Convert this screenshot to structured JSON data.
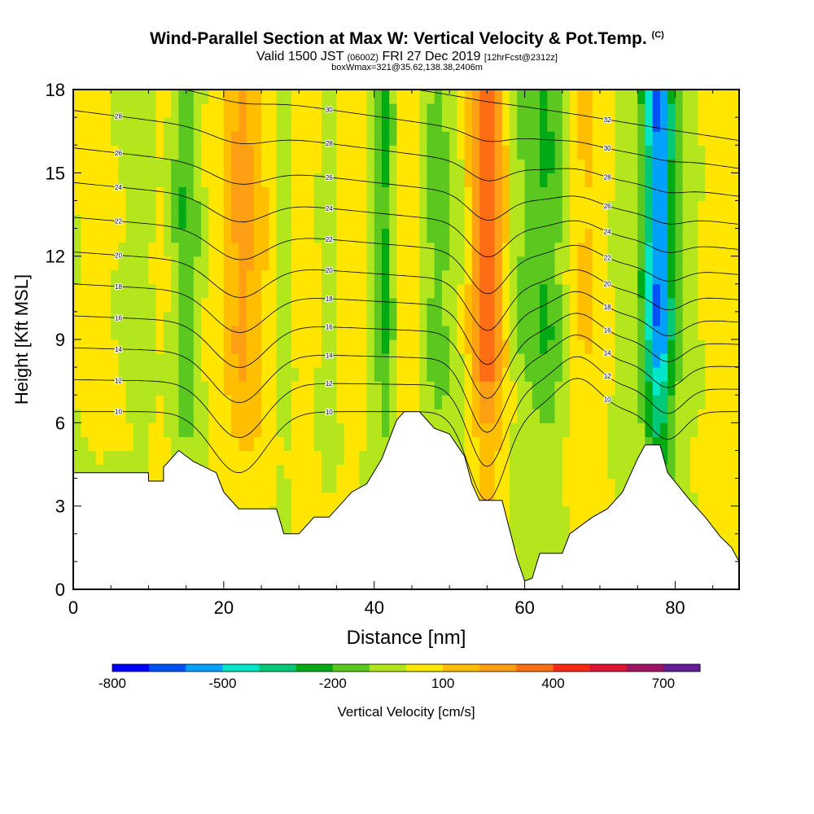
{
  "header": {
    "title": "Wind-Parallel Section at Max W: Vertical Velocity & Pot.Temp.",
    "copyright": "(C)",
    "valid_prefix": "Valid 1500 JST",
    "valid_utc": "(0600Z)",
    "valid_date": "FRI 27 Dec 2019",
    "forecast": "[12hrFcst@2312z]",
    "box_info": "boxWmax=321@35.62,138.38,2406m"
  },
  "chart_data": {
    "type": "heatmap",
    "title": "Wind-Parallel Section at Max W: Vertical Velocity & Pot.Temp.",
    "xlabel": "Distance [nm]",
    "ylabel": "Height [Kft MSL]",
    "xlim": [
      0,
      88.5
    ],
    "ylim": [
      0,
      18
    ],
    "xticks": [
      0,
      20,
      40,
      60,
      80
    ],
    "yticks": [
      0,
      3,
      6,
      9,
      12,
      15,
      18
    ],
    "colorbar": {
      "label": "Vertical Velocity [cm/s]",
      "tick_labels": [
        "-800",
        "-500",
        "-200",
        "100",
        "400",
        "700"
      ],
      "tick_values": [
        -800,
        -500,
        -200,
        100,
        400,
        700
      ],
      "levels": [
        -800,
        -700,
        -600,
        -500,
        -400,
        -300,
        -200,
        -100,
        0,
        100,
        200,
        300,
        400,
        500,
        600,
        700
      ],
      "colors": [
        "#0000ff",
        "#0050ff",
        "#00a0ff",
        "#00e6c8",
        "#00c878",
        "#00aa14",
        "#5ac81e",
        "#b4e61e",
        "#ffe600",
        "#ffbe00",
        "#ffa014",
        "#ff6e14",
        "#ff2814",
        "#dc1432",
        "#a01464",
        "#641e96"
      ]
    },
    "terrain_kft": [
      [
        0,
        4.2
      ],
      [
        10,
        4.2
      ],
      [
        10,
        3.9
      ],
      [
        12,
        3.9
      ],
      [
        12,
        4.4
      ],
      [
        14,
        5.0
      ],
      [
        16,
        4.6
      ],
      [
        19,
        4.2
      ],
      [
        20,
        3.5
      ],
      [
        22,
        2.9
      ],
      [
        27,
        2.9
      ],
      [
        28,
        2.0
      ],
      [
        30,
        2.0
      ],
      [
        32,
        2.6
      ],
      [
        34,
        2.6
      ],
      [
        37,
        3.5
      ],
      [
        39,
        3.8
      ],
      [
        41,
        4.7
      ],
      [
        43,
        6.1
      ],
      [
        44,
        6.4
      ],
      [
        46,
        6.4
      ],
      [
        48,
        5.8
      ],
      [
        50,
        5.6
      ],
      [
        52,
        4.8
      ],
      [
        53,
        3.8
      ],
      [
        54,
        3.2
      ],
      [
        57,
        3.2
      ],
      [
        59,
        1.1
      ],
      [
        60,
        0.3
      ],
      [
        61,
        0.4
      ],
      [
        62,
        1.3
      ],
      [
        65,
        1.3
      ],
      [
        66,
        2.0
      ],
      [
        69,
        2.6
      ],
      [
        71,
        2.9
      ],
      [
        73,
        3.5
      ],
      [
        75,
        4.7
      ],
      [
        76,
        5.2
      ],
      [
        78,
        5.2
      ],
      [
        79,
        4.2
      ],
      [
        82,
        3.2
      ],
      [
        84,
        2.6
      ],
      [
        86,
        1.9
      ],
      [
        87.5,
        1.5
      ],
      [
        88.5,
        1.0
      ]
    ],
    "w_columns": [
      [
        0,
        0
      ],
      [
        3,
        50
      ],
      [
        6,
        0
      ],
      [
        9,
        -60
      ],
      [
        12,
        30
      ],
      [
        14,
        -140
      ],
      [
        15,
        -230
      ],
      [
        16,
        -130
      ],
      [
        18,
        40
      ],
      [
        20,
        90
      ],
      [
        22,
        240
      ],
      [
        24,
        200
      ],
      [
        26,
        60
      ],
      [
        28,
        -70
      ],
      [
        30,
        50
      ],
      [
        32,
        30
      ],
      [
        34,
        -60
      ],
      [
        36,
        60
      ],
      [
        38,
        70
      ],
      [
        40,
        -60
      ],
      [
        41,
        -230
      ],
      [
        42,
        -200
      ],
      [
        43,
        30
      ],
      [
        44,
        90
      ],
      [
        46,
        0
      ],
      [
        48,
        -150
      ],
      [
        50,
        -100
      ],
      [
        52,
        20
      ],
      [
        53,
        180
      ],
      [
        54,
        300
      ],
      [
        55,
        420
      ],
      [
        56,
        330
      ],
      [
        57,
        160
      ],
      [
        59,
        -80
      ],
      [
        61,
        -170
      ],
      [
        63,
        -210
      ],
      [
        64,
        -160
      ],
      [
        66,
        30
      ],
      [
        68,
        130
      ],
      [
        70,
        60
      ],
      [
        73,
        -50
      ],
      [
        75,
        -90
      ],
      [
        76,
        -280
      ],
      [
        77,
        -520
      ],
      [
        78,
        -650
      ],
      [
        79,
        -420
      ],
      [
        80,
        -160
      ],
      [
        81,
        -80
      ],
      [
        84,
        30
      ],
      [
        86,
        80
      ],
      [
        88.5,
        80
      ]
    ],
    "theta_series": [
      {
        "label": "10",
        "base_kft": 6.4
      },
      {
        "label": "12",
        "base_kft": 7.2
      },
      {
        "label": "14",
        "base_kft": 8.0
      },
      {
        "label": "16",
        "base_kft": 8.8
      },
      {
        "label": "18",
        "base_kft": 9.6
      },
      {
        "label": "20",
        "base_kft": 10.4
      },
      {
        "label": "22",
        "base_kft": 11.3
      },
      {
        "label": "24",
        "base_kft": 12.2
      },
      {
        "label": "26",
        "base_kft": 13.1
      },
      {
        "label": "28",
        "base_kft": 14.1
      },
      {
        "label": "30",
        "base_kft": 15.1
      },
      {
        "label": "32",
        "base_kft": 16.1
      }
    ]
  }
}
